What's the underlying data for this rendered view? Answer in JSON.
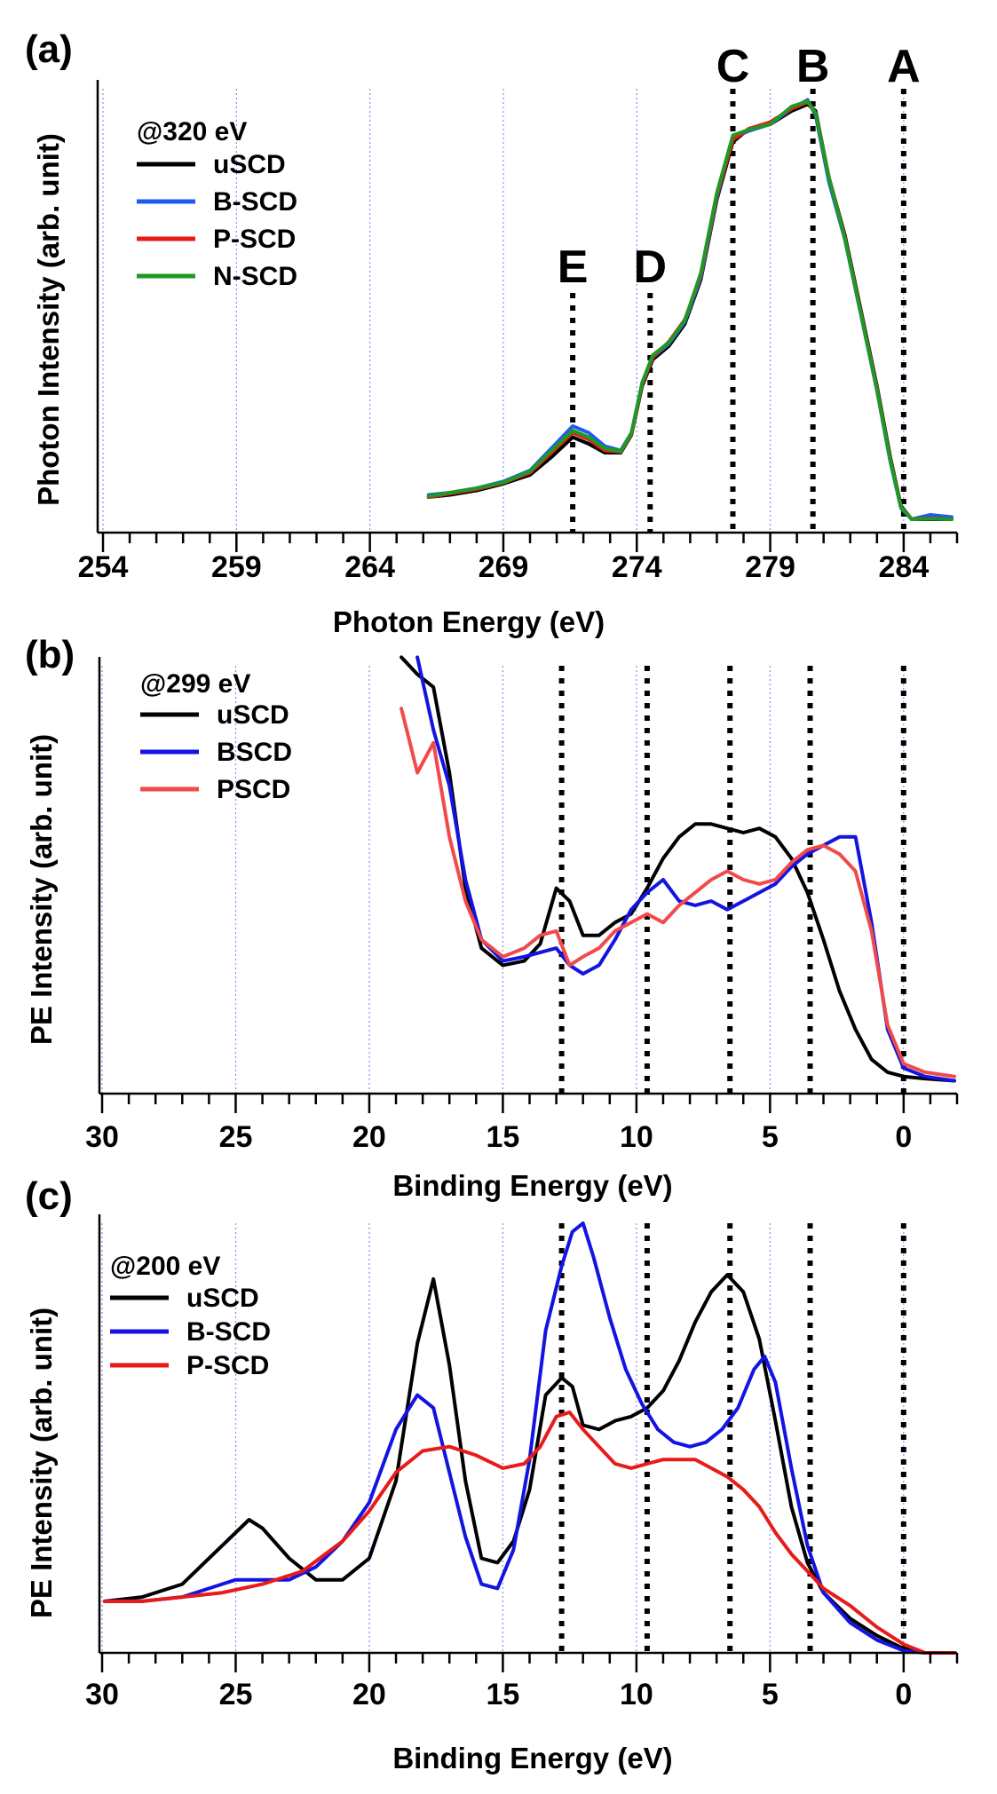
{
  "chart_data": [
    {
      "type": "line",
      "panel_label": "(a)",
      "xlabel": "Photon Energy (eV)",
      "ylabel": "Photon Intensity (arb. unit)",
      "xlim": [
        253.8,
        286.0
      ],
      "ylim": [
        0,
        1.0
      ],
      "x_reversed": false,
      "x_ticks": [
        254,
        259,
        264,
        269,
        274,
        279,
        284
      ],
      "x_tick_labels": [
        "254",
        "259",
        "264",
        "269",
        "274",
        "279",
        "284"
      ],
      "grid": true,
      "legend_placement": "top-left",
      "legend_title": "@320 eV",
      "markers": [
        {
          "label": "E",
          "x": 271.6
        },
        {
          "label": "D",
          "x": 274.5
        },
        {
          "label": "C",
          "x": 277.6
        },
        {
          "label": "B",
          "x": 280.6
        },
        {
          "label": "A",
          "x": 284.0
        }
      ],
      "series": [
        {
          "name": "uSCD",
          "color": "#000000",
          "x": [
            266.2,
            267,
            268,
            269,
            270,
            270.8,
            271.6,
            272.2,
            272.8,
            273.4,
            273.8,
            274.2,
            274.6,
            275.2,
            275.8,
            276.4,
            277.0,
            277.6,
            278.2,
            279.0,
            279.8,
            280.4,
            280.7,
            281.2,
            281.8,
            282.4,
            283.0,
            283.5,
            283.9,
            284.3,
            285.0,
            285.8
          ],
          "y": [
            0.08,
            0.085,
            0.095,
            0.11,
            0.13,
            0.17,
            0.215,
            0.2,
            0.18,
            0.18,
            0.22,
            0.33,
            0.39,
            0.42,
            0.47,
            0.57,
            0.75,
            0.88,
            0.91,
            0.92,
            0.95,
            0.965,
            0.95,
            0.8,
            0.67,
            0.5,
            0.33,
            0.17,
            0.06,
            0.03,
            0.03,
            0.03
          ]
        },
        {
          "name": "B-SCD",
          "color": "#1f5bf0",
          "x": [
            266.2,
            267,
            268,
            269,
            270,
            270.8,
            271.6,
            272.2,
            272.8,
            273.4,
            273.8,
            274.2,
            274.6,
            275.2,
            275.8,
            276.4,
            277.0,
            277.6,
            278.2,
            279.0,
            279.8,
            280.4,
            280.7,
            281.2,
            281.8,
            282.4,
            283.0,
            283.5,
            283.9,
            284.3,
            285.0,
            285.8
          ],
          "y": [
            0.085,
            0.09,
            0.1,
            0.115,
            0.14,
            0.19,
            0.24,
            0.225,
            0.195,
            0.185,
            0.225,
            0.335,
            0.395,
            0.425,
            0.475,
            0.575,
            0.755,
            0.89,
            0.905,
            0.92,
            0.955,
            0.975,
            0.94,
            0.79,
            0.66,
            0.49,
            0.32,
            0.16,
            0.055,
            0.03,
            0.04,
            0.035
          ]
        },
        {
          "name": "P-SCD",
          "color": "#e81a1a",
          "x": [
            266.2,
            267,
            268,
            269,
            270,
            270.8,
            271.6,
            272.2,
            272.8,
            273.4,
            273.8,
            274.2,
            274.6,
            275.2,
            275.8,
            276.4,
            277.0,
            277.6,
            278.2,
            279.0,
            279.8,
            280.4,
            280.7,
            281.2,
            281.8,
            282.4,
            283.0,
            283.5,
            283.9,
            284.3,
            285.0,
            285.8
          ],
          "y": [
            0.08,
            0.088,
            0.098,
            0.112,
            0.135,
            0.18,
            0.225,
            0.21,
            0.185,
            0.182,
            0.222,
            0.335,
            0.395,
            0.43,
            0.48,
            0.58,
            0.76,
            0.885,
            0.91,
            0.925,
            0.955,
            0.97,
            0.945,
            0.8,
            0.665,
            0.495,
            0.325,
            0.165,
            0.058,
            0.03,
            0.032,
            0.03
          ]
        },
        {
          "name": "N-SCD",
          "color": "#1e9a22",
          "x": [
            266.2,
            267,
            268,
            269,
            270,
            270.8,
            271.6,
            272.2,
            272.8,
            273.4,
            273.8,
            274.2,
            274.6,
            275.2,
            275.8,
            276.4,
            277.0,
            277.6,
            278.2,
            279.0,
            279.8,
            280.4,
            280.7,
            281.2,
            281.8,
            282.4,
            283.0,
            283.5,
            283.9,
            284.3,
            285.0,
            285.8
          ],
          "y": [
            0.082,
            0.09,
            0.1,
            0.113,
            0.138,
            0.185,
            0.23,
            0.215,
            0.19,
            0.183,
            0.224,
            0.338,
            0.4,
            0.428,
            0.478,
            0.585,
            0.765,
            0.895,
            0.908,
            0.92,
            0.96,
            0.972,
            0.945,
            0.8,
            0.662,
            0.492,
            0.322,
            0.163,
            0.057,
            0.03,
            0.031,
            0.03
          ]
        }
      ]
    },
    {
      "type": "line",
      "panel_label": "(b)",
      "xlabel": "Binding Energy (eV)",
      "ylabel": "PE Intensity (arb. unit)",
      "xlim": [
        30.1,
        -2.0
      ],
      "ylim": [
        0,
        1.0
      ],
      "x_reversed": true,
      "x_ticks": [
        30,
        25,
        20,
        15,
        10,
        5,
        0
      ],
      "x_tick_labels": [
        "30",
        "25",
        "20",
        "15",
        "10",
        "5",
        "0"
      ],
      "grid": true,
      "legend_placement": "top-left",
      "legend_title": "@299 eV",
      "markers": [
        {
          "label": "",
          "x": 12.8
        },
        {
          "label": "",
          "x": 9.6
        },
        {
          "label": "",
          "x": 6.5
        },
        {
          "label": "",
          "x": 3.5
        },
        {
          "label": "",
          "x": 0.0
        }
      ],
      "series": [
        {
          "name": "uSCD",
          "color": "#000000",
          "x": [
            18.8,
            18.2,
            17.6,
            17.0,
            16.4,
            15.8,
            15.0,
            14.2,
            13.6,
            13.0,
            12.5,
            12.0,
            11.4,
            10.8,
            10.2,
            9.6,
            9.0,
            8.4,
            7.8,
            7.2,
            6.6,
            6.0,
            5.4,
            4.8,
            4.2,
            3.6,
            3.0,
            2.4,
            1.8,
            1.2,
            0.6,
            0.0,
            -0.8,
            -1.9
          ],
          "y": [
            1.02,
            0.98,
            0.95,
            0.75,
            0.48,
            0.34,
            0.3,
            0.31,
            0.35,
            0.48,
            0.45,
            0.37,
            0.37,
            0.4,
            0.42,
            0.48,
            0.55,
            0.6,
            0.63,
            0.63,
            0.62,
            0.61,
            0.62,
            0.6,
            0.55,
            0.47,
            0.36,
            0.24,
            0.15,
            0.08,
            0.05,
            0.04,
            0.035,
            0.03
          ]
        },
        {
          "name": "BSCD",
          "color": "#1414e0",
          "x": [
            18.2,
            17.6,
            17.0,
            16.4,
            15.8,
            15.0,
            14.2,
            13.6,
            13.0,
            12.5,
            12.0,
            11.4,
            10.8,
            10.2,
            9.6,
            9.0,
            8.4,
            7.8,
            7.2,
            6.6,
            6.0,
            5.4,
            4.8,
            4.2,
            3.6,
            3.0,
            2.4,
            1.8,
            1.2,
            0.6,
            0.0,
            -0.8,
            -1.9
          ],
          "y": [
            1.02,
            0.85,
            0.72,
            0.5,
            0.36,
            0.31,
            0.32,
            0.33,
            0.34,
            0.3,
            0.28,
            0.3,
            0.36,
            0.43,
            0.47,
            0.5,
            0.45,
            0.44,
            0.45,
            0.43,
            0.45,
            0.47,
            0.49,
            0.53,
            0.56,
            0.58,
            0.6,
            0.6,
            0.4,
            0.15,
            0.06,
            0.04,
            0.03
          ]
        },
        {
          "name": "PSCD",
          "color": "#f24a4a",
          "x": [
            18.8,
            18.2,
            17.6,
            17.0,
            16.4,
            15.8,
            15.0,
            14.2,
            13.6,
            13.0,
            12.5,
            12.0,
            11.4,
            10.8,
            10.2,
            9.6,
            9.0,
            8.4,
            7.8,
            7.2,
            6.6,
            6.0,
            5.4,
            4.8,
            4.2,
            3.6,
            3.0,
            2.4,
            1.8,
            1.2,
            0.6,
            0.0,
            -0.8,
            -1.9
          ],
          "y": [
            0.9,
            0.75,
            0.82,
            0.6,
            0.45,
            0.36,
            0.32,
            0.34,
            0.37,
            0.38,
            0.3,
            0.32,
            0.34,
            0.38,
            0.4,
            0.42,
            0.4,
            0.44,
            0.47,
            0.5,
            0.52,
            0.5,
            0.49,
            0.5,
            0.54,
            0.57,
            0.58,
            0.56,
            0.52,
            0.38,
            0.16,
            0.07,
            0.05,
            0.04
          ]
        }
      ]
    },
    {
      "type": "line",
      "panel_label": "(c)",
      "xlabel": "Binding Energy (eV)",
      "ylabel": "PE Intensity (arb. unit)",
      "xlim": [
        30.1,
        -2.0
      ],
      "ylim": [
        0,
        1.0
      ],
      "x_reversed": true,
      "x_ticks": [
        30,
        25,
        20,
        15,
        10,
        5,
        0
      ],
      "x_tick_labels": [
        "30",
        "25",
        "20",
        "15",
        "10",
        "5",
        "0"
      ],
      "grid": true,
      "legend_placement": "top-left",
      "legend_title": "@200 eV",
      "markers": [
        {
          "label": "",
          "x": 12.8
        },
        {
          "label": "",
          "x": 9.6
        },
        {
          "label": "",
          "x": 6.5
        },
        {
          "label": "",
          "x": 3.5
        },
        {
          "label": "",
          "x": 0.0
        }
      ],
      "series": [
        {
          "name": "uSCD",
          "color": "#000000",
          "x": [
            29.9,
            28.5,
            27.0,
            26.0,
            25.0,
            24.5,
            24.0,
            23.0,
            22.0,
            21.0,
            20.0,
            19.0,
            18.2,
            17.6,
            17.0,
            16.4,
            15.8,
            15.2,
            14.6,
            14.0,
            13.4,
            12.8,
            12.4,
            12.0,
            11.4,
            10.8,
            10.2,
            9.6,
            9.0,
            8.4,
            7.8,
            7.2,
            6.6,
            6.0,
            5.4,
            4.8,
            4.2,
            3.6,
            3.0,
            2.0,
            1.0,
            0.0,
            -0.8,
            -1.9
          ],
          "y": [
            0.12,
            0.13,
            0.16,
            0.22,
            0.28,
            0.31,
            0.29,
            0.22,
            0.17,
            0.17,
            0.22,
            0.4,
            0.72,
            0.87,
            0.67,
            0.4,
            0.22,
            0.21,
            0.26,
            0.38,
            0.6,
            0.64,
            0.62,
            0.53,
            0.52,
            0.54,
            0.55,
            0.57,
            0.61,
            0.68,
            0.77,
            0.84,
            0.88,
            0.84,
            0.73,
            0.54,
            0.34,
            0.21,
            0.14,
            0.08,
            0.04,
            0.01,
            0.0,
            0.0
          ]
        },
        {
          "name": "B-SCD",
          "color": "#1414e0",
          "x": [
            29.9,
            28.5,
            27.0,
            26.0,
            25.0,
            24.0,
            23.0,
            22.0,
            21.0,
            20.0,
            19.0,
            18.2,
            17.6,
            17.0,
            16.4,
            15.8,
            15.2,
            14.6,
            14.0,
            13.4,
            12.8,
            12.4,
            12.0,
            11.6,
            11.0,
            10.4,
            9.8,
            9.2,
            8.6,
            8.0,
            7.4,
            6.8,
            6.2,
            5.6,
            5.2,
            4.8,
            4.2,
            3.6,
            3.0,
            2.0,
            1.0,
            0.0,
            -0.8,
            -1.9
          ],
          "y": [
            0.12,
            0.12,
            0.13,
            0.15,
            0.17,
            0.17,
            0.17,
            0.2,
            0.26,
            0.35,
            0.52,
            0.6,
            0.57,
            0.42,
            0.27,
            0.16,
            0.15,
            0.24,
            0.45,
            0.75,
            0.9,
            0.98,
            1.0,
            0.92,
            0.78,
            0.66,
            0.58,
            0.52,
            0.49,
            0.48,
            0.49,
            0.52,
            0.57,
            0.66,
            0.69,
            0.63,
            0.43,
            0.25,
            0.14,
            0.07,
            0.03,
            0.005,
            0.0,
            0.0
          ]
        },
        {
          "name": "P-SCD",
          "color": "#e81a1a",
          "x": [
            29.9,
            28.5,
            27.0,
            25.5,
            24.0,
            22.5,
            21.0,
            20.0,
            19.0,
            18.0,
            17.0,
            16.0,
            15.0,
            14.2,
            13.6,
            13.0,
            12.5,
            12.0,
            11.4,
            10.8,
            10.2,
            9.6,
            9.0,
            8.4,
            7.8,
            7.2,
            6.6,
            6.0,
            5.4,
            4.8,
            4.2,
            3.6,
            3.0,
            2.0,
            1.0,
            0.0,
            -0.8,
            -1.9
          ],
          "y": [
            0.12,
            0.12,
            0.13,
            0.14,
            0.16,
            0.19,
            0.26,
            0.33,
            0.42,
            0.47,
            0.48,
            0.46,
            0.43,
            0.44,
            0.48,
            0.55,
            0.56,
            0.52,
            0.48,
            0.44,
            0.43,
            0.44,
            0.45,
            0.45,
            0.45,
            0.43,
            0.41,
            0.38,
            0.34,
            0.28,
            0.23,
            0.19,
            0.15,
            0.11,
            0.06,
            0.02,
            0.0,
            0.0
          ]
        }
      ]
    }
  ]
}
